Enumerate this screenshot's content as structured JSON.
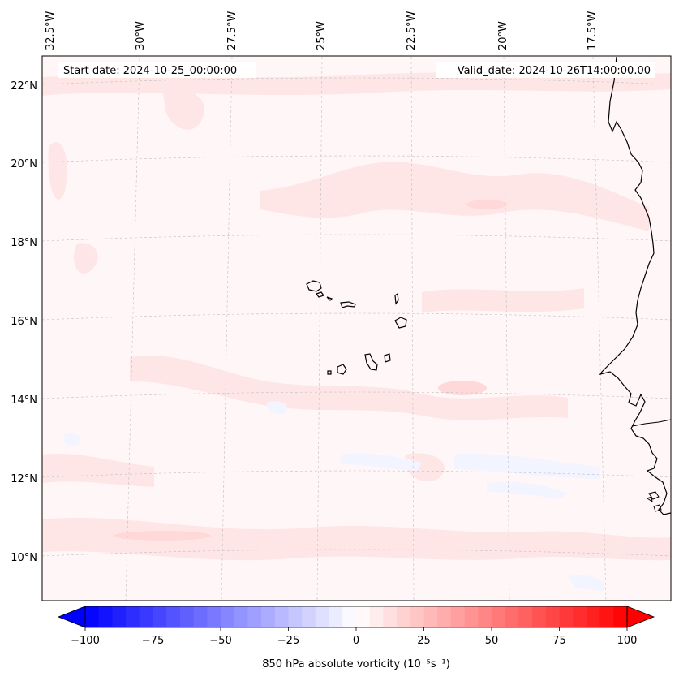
{
  "map": {
    "start_date": "Start date: 2024-10-25_00:00:00",
    "valid_date": "Valid_date: 2024-10-26T14:00:00.00",
    "lon_labels": [
      "32.5°W",
      "30°W",
      "27.5°W",
      "25°W",
      "22.5°W",
      "20°W",
      "17.5°W"
    ],
    "lat_labels": [
      "22°N",
      "20°N",
      "18°N",
      "16°N",
      "14°N",
      "12°N",
      "10°N"
    ],
    "colorbar": {
      "ticks": [
        "−100",
        "−75",
        "−50",
        "−25",
        "0",
        "25",
        "50",
        "75",
        "100"
      ],
      "label": "850 hPa absolute vorticity (10⁻⁵s⁻¹)",
      "vmin": -100,
      "vmax": 100,
      "low_color": "#0000ff",
      "mid_color": "#ffffff",
      "high_color": "#ff0000"
    },
    "field_colors": {
      "background": "#fff7f7",
      "weak_positive": "#ffe6e6",
      "weak_negative": "#f2f4ff"
    },
    "coastline_color": "#000000"
  }
}
